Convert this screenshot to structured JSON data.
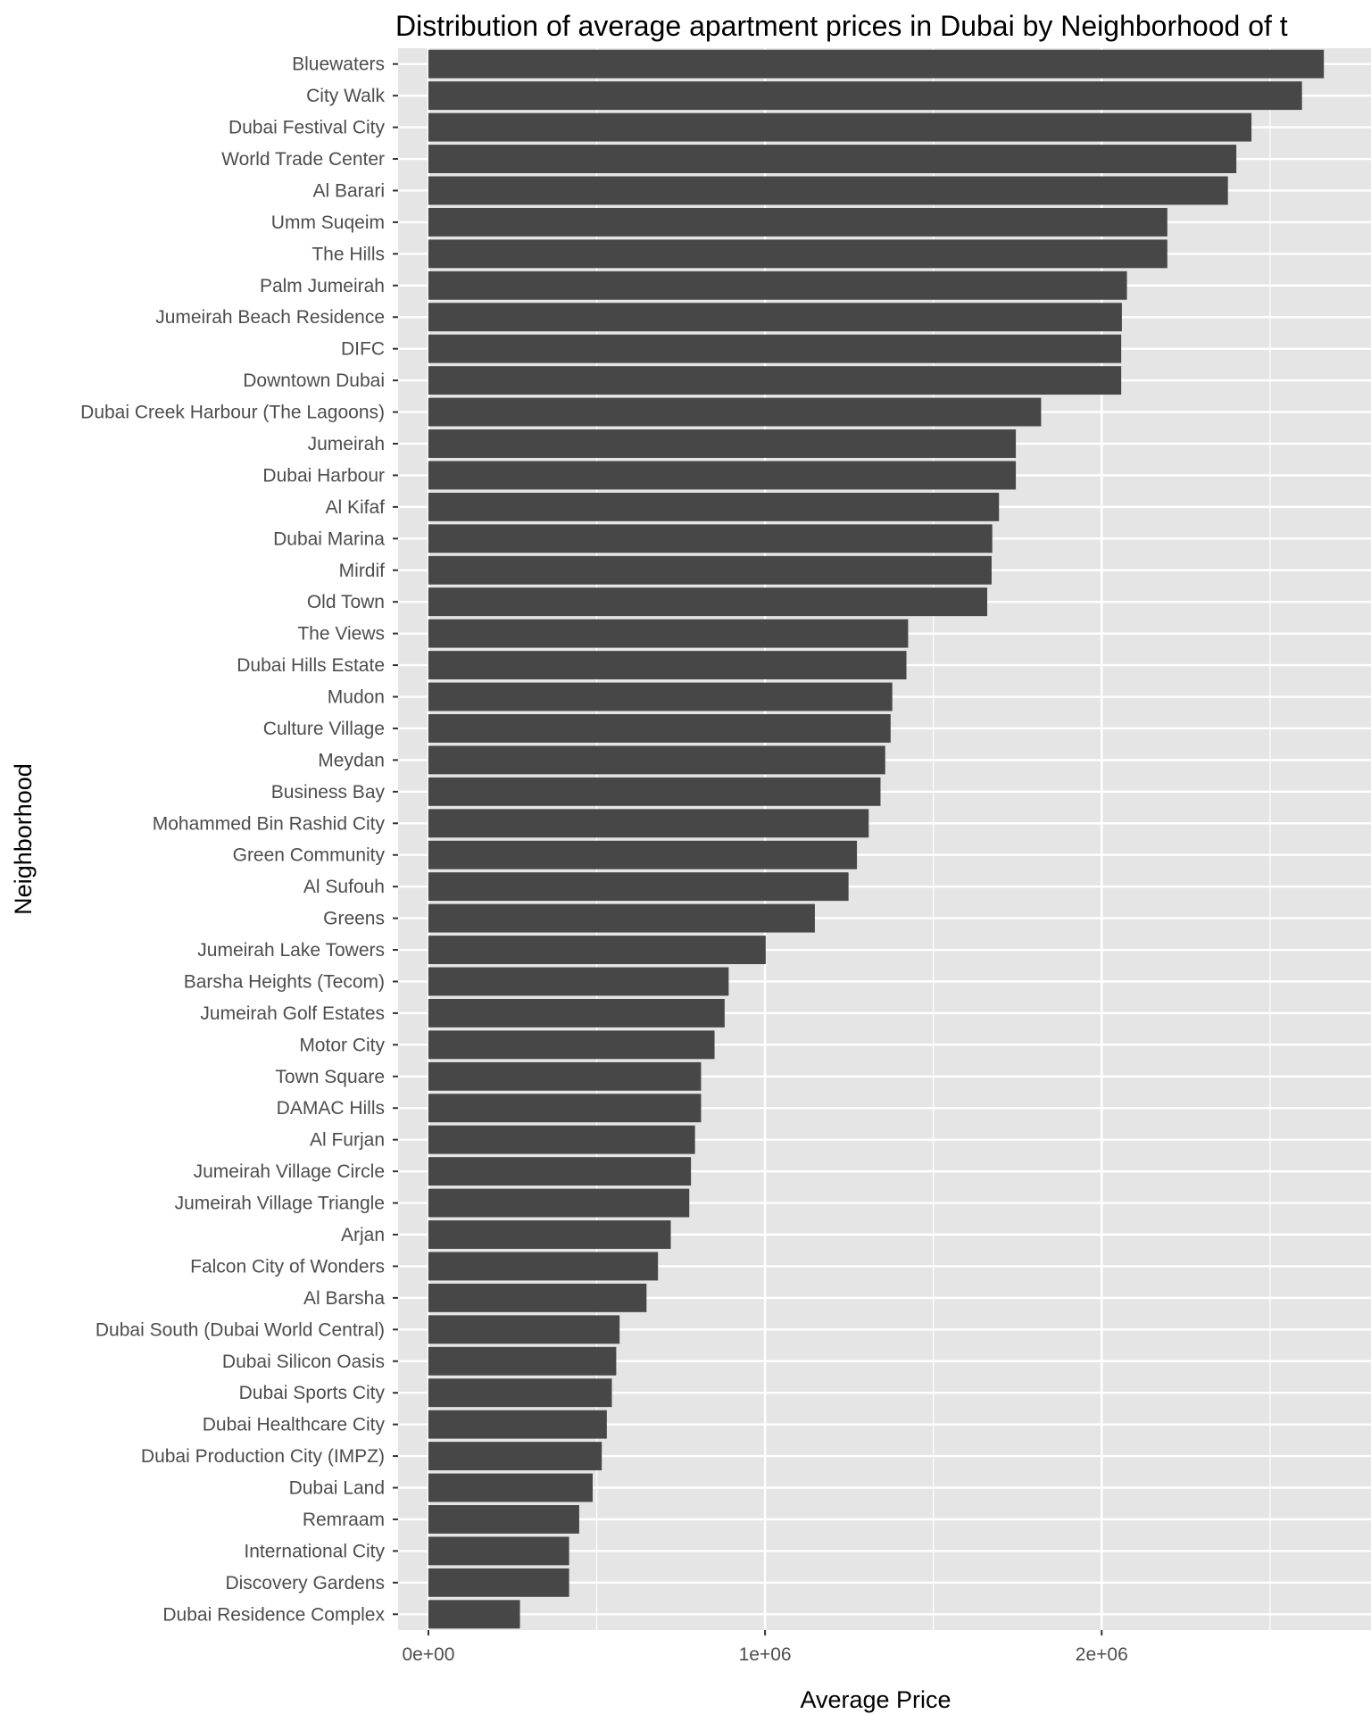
{
  "chart_data": {
    "type": "bar",
    "orientation": "horizontal",
    "title": "Distribution of average apartment prices in Dubai by Neighborhood of t",
    "xlabel": "Average Price",
    "ylabel": "Neighborhood",
    "xlim": [
      -90000,
      2800000
    ],
    "x_ticks": [
      0,
      1000000,
      2000000
    ],
    "x_tick_labels": [
      "0e+00",
      "1e+06",
      "2e+06"
    ],
    "grid": true,
    "legend": "none",
    "bar_color": "#474747",
    "panel_background": "#e5e5e5",
    "grid_color": "#ffffff",
    "categories": [
      "Bluewaters",
      "City Walk",
      "Dubai Festival City",
      "World Trade Center",
      "Al Barari",
      "Umm Suqeim",
      "The Hills",
      "Palm Jumeirah",
      "Jumeirah Beach Residence",
      "DIFC",
      "Downtown Dubai",
      "Dubai Creek Harbour (The Lagoons)",
      "Jumeirah",
      "Dubai Harbour",
      "Al Kifaf",
      "Dubai Marina",
      "Mirdif",
      "Old Town",
      "The Views",
      "Dubai Hills Estate",
      "Mudon",
      "Culture Village",
      "Meydan",
      "Business Bay",
      "Mohammed Bin Rashid City",
      "Green Community",
      "Al Sufouh",
      "Greens",
      "Jumeirah Lake Towers",
      "Barsha Heights (Tecom)",
      "Jumeirah Golf Estates",
      "Motor City",
      "Town Square",
      "DAMAC Hills",
      "Al Furjan",
      "Jumeirah Village Circle",
      "Jumeirah Village Triangle",
      "Arjan",
      "Falcon City of Wonders",
      "Al Barsha",
      "Dubai South (Dubai World Central)",
      "Dubai Silicon Oasis",
      "Dubai Sports City",
      "Dubai Healthcare City",
      "Dubai Production City (IMPZ)",
      "Dubai Land",
      "Remraam",
      "International City",
      "Discovery Gardens",
      "Dubai Residence Complex"
    ],
    "values": [
      2660000,
      2595000,
      2445000,
      2400000,
      2375000,
      2195000,
      2195000,
      2075000,
      2060000,
      2058000,
      2058000,
      1820000,
      1745000,
      1745000,
      1695000,
      1675000,
      1673000,
      1660000,
      1425000,
      1420000,
      1378000,
      1373000,
      1357000,
      1343000,
      1308000,
      1273000,
      1248000,
      1148000,
      1002000,
      892000,
      880000,
      850000,
      810000,
      810000,
      792000,
      780000,
      775000,
      720000,
      682000,
      648000,
      568000,
      558000,
      545000,
      530000,
      515000,
      488000,
      448000,
      418000,
      418000,
      272000
    ]
  }
}
